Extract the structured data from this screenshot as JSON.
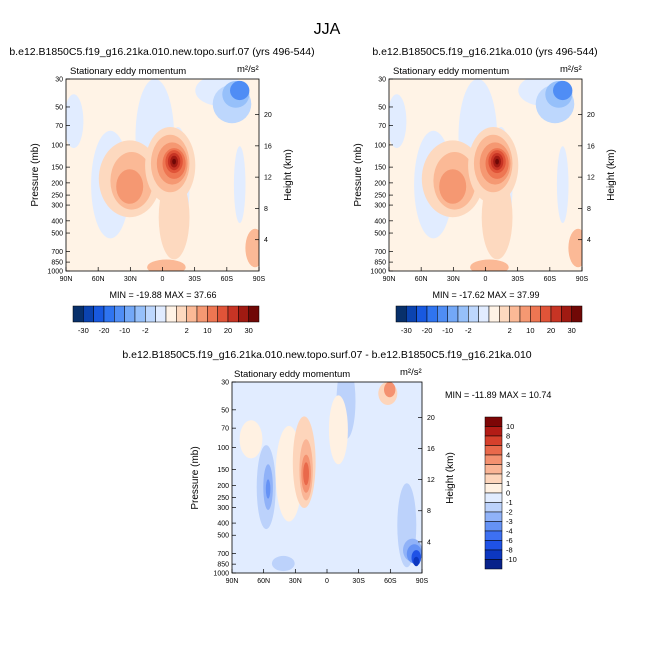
{
  "figure": {
    "title": "JJA"
  },
  "colors": {
    "top_scale": [
      "#08306b",
      "#0b43b0",
      "#1859e0",
      "#2f74f0",
      "#4f8df5",
      "#73a8f7",
      "#96c0fa",
      "#bdd7fd",
      "#e1ecff",
      "#fff3e6",
      "#fdd9bf",
      "#fbb996",
      "#f59872",
      "#ee7652",
      "#e05438",
      "#c73424",
      "#a01a12",
      "#700806"
    ],
    "diff_scale": [
      "#08228a",
      "#0c37c0",
      "#1f52e6",
      "#3d70f2",
      "#6592f5",
      "#90b2f8",
      "#bcd2fb",
      "#e1ecff",
      "#fff1e2",
      "#fdd5bb",
      "#fab596",
      "#f49170",
      "#e9694b",
      "#d6402c",
      "#b31c16",
      "#7d0606"
    ]
  },
  "chart_data": [
    {
      "type": "heatmap",
      "title": "b.e12.B1850C5.f19_g16.21ka.010.new.topo.surf.07 (yrs 496-544)",
      "subtitle": "Stationary eddy momentum",
      "units": "m²/s²",
      "ylabel": "Pressure (mb)",
      "ylabel_right": "Height (km)",
      "x_ticks": [
        "90N",
        "60N",
        "30N",
        "0",
        "30S",
        "60S",
        "90S"
      ],
      "y_ticks": [
        "30",
        "50",
        "70",
        "100",
        "150",
        "200",
        "250",
        "300",
        "400",
        "500",
        "700",
        "850",
        "1000"
      ],
      "y_right_ticks": [
        "20",
        "16",
        "12",
        "8",
        "4"
      ],
      "min_max_text": "MIN = -19.88   MAX = 37.66",
      "colorbar_labels": [
        "-30",
        "-20",
        "-10",
        "-2",
        "2",
        "10",
        "20",
        "30"
      ]
    },
    {
      "type": "heatmap",
      "title": "b.e12.B1850C5.f19_g16.21ka.010 (yrs 496-544)",
      "subtitle": "Stationary eddy momentum",
      "units": "m²/s²",
      "ylabel": "Pressure (mb)",
      "ylabel_right": "Height (km)",
      "x_ticks": [
        "90N",
        "60N",
        "30N",
        "0",
        "30S",
        "60S",
        "90S"
      ],
      "y_ticks": [
        "30",
        "50",
        "70",
        "100",
        "150",
        "200",
        "250",
        "300",
        "400",
        "500",
        "700",
        "850",
        "1000"
      ],
      "y_right_ticks": [
        "20",
        "16",
        "12",
        "8",
        "4"
      ],
      "min_max_text": "MIN = -17.62   MAX = 37.99",
      "colorbar_labels": [
        "-30",
        "-20",
        "-10",
        "-2",
        "2",
        "10",
        "20",
        "30"
      ]
    },
    {
      "type": "heatmap",
      "title": "b.e12.B1850C5.f19_g16.21ka.010.new.topo.surf.07 - b.e12.B1850C5.f19_g16.21ka.010",
      "subtitle": "Stationary eddy momentum",
      "units": "m²/s²",
      "ylabel": "Pressure (mb)",
      "ylabel_right": "Height (km)",
      "x_ticks": [
        "90N",
        "60N",
        "30N",
        "0",
        "30S",
        "60S",
        "90S"
      ],
      "y_ticks": [
        "30",
        "50",
        "70",
        "100",
        "150",
        "200",
        "250",
        "300",
        "400",
        "500",
        "700",
        "850",
        "1000"
      ],
      "y_right_ticks": [
        "20",
        "16",
        "12",
        "8",
        "4"
      ],
      "min_max_text": "MIN = -11.89   MAX =  10.74",
      "colorbar_labels": [
        "10",
        "8",
        "6",
        "4",
        "3",
        "2",
        "1",
        "0",
        "-1",
        "-2",
        "-3",
        "-4",
        "-6",
        "-8",
        "-10"
      ]
    }
  ]
}
